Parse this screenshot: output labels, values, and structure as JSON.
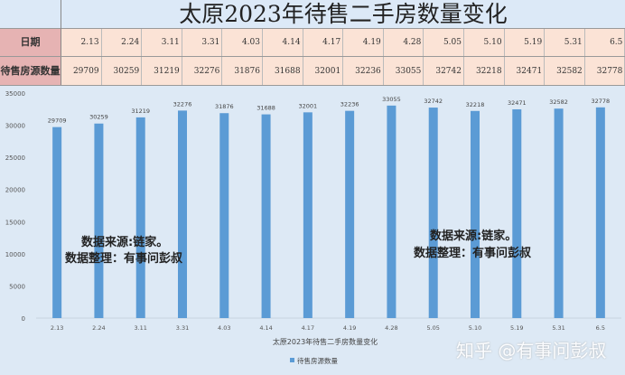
{
  "title": "太原2023年待售二手房数量变化",
  "table": {
    "date_header": "日期",
    "count_header": "待售房源数量"
  },
  "notes": {
    "source": "数据来源:链家。",
    "compiler": "数据整理：有事问彭叔"
  },
  "watermark": "知乎 @有事问彭叔",
  "colors": {
    "bar": "#5b9bd5"
  },
  "chart_data": {
    "type": "bar",
    "categories": [
      "2.13",
      "2.24",
      "3.11",
      "3.31",
      "4.03",
      "4.14",
      "4.17",
      "4.19",
      "4.28",
      "5.05",
      "5.10",
      "5.19",
      "5.31",
      "6.5"
    ],
    "table_dates": [
      "2.13",
      "2.24",
      "3.11",
      "3.31",
      "4.03",
      "4.14",
      "4.17",
      "4.19",
      "4.28",
      "5.05",
      "5.10",
      "5.19",
      "5.31",
      "6.5"
    ],
    "series": [
      {
        "name": "待售房源数量",
        "values": [
          29709,
          30259,
          31219,
          32276,
          31876,
          31688,
          32001,
          32236,
          33055,
          32742,
          32218,
          32471,
          32582,
          32778
        ]
      }
    ],
    "xlabel": "太原2023年待售二手房数量变化",
    "ylabel": "",
    "ylim": [
      0,
      35000
    ],
    "yticks": [
      "0",
      "5000",
      "10000",
      "15000",
      "20000",
      "25000",
      "30000",
      "35000"
    ],
    "legend": "bottom",
    "grid": false
  }
}
